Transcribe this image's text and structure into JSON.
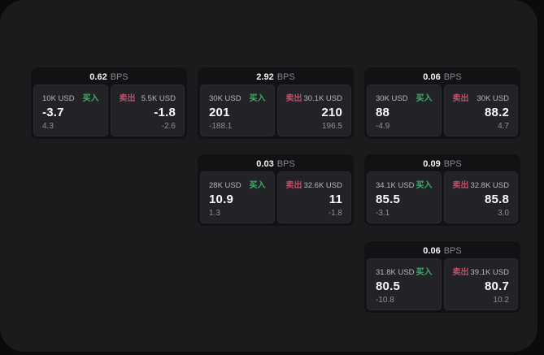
{
  "labels": {
    "bps_unit": "BPS",
    "buy": "买入",
    "sell": "卖出"
  },
  "colors": {
    "page_bg": "#0b0b0c",
    "panel_bg": "#1b1b1d",
    "card_bg": "#121214",
    "pane_bg": "#232327",
    "buy_accent": "#3fae68",
    "sell_accent": "#c0506a",
    "primary_text": "#fafafa",
    "muted_text": "#8f8f94"
  },
  "cards": [
    {
      "bps": "0.62",
      "buy": {
        "notional": "10K USD",
        "price": "-3.7",
        "delta": "4.3"
      },
      "sell": {
        "notional": "5.5K USD",
        "price": "-1.8",
        "delta": "-2.6"
      }
    },
    {
      "bps": "2.92",
      "buy": {
        "notional": "30K USD",
        "price": "201",
        "delta": "-188.1"
      },
      "sell": {
        "notional": "30.1K USD",
        "price": "210",
        "delta": "196.5"
      }
    },
    {
      "bps": "0.06",
      "buy": {
        "notional": "30K USD",
        "price": "88",
        "delta": "-4.9"
      },
      "sell": {
        "notional": "30K USD",
        "price": "88.2",
        "delta": "4.7"
      }
    },
    {
      "bps": "0.03",
      "buy": {
        "notional": "28K USD",
        "price": "10.9",
        "delta": "1.3"
      },
      "sell": {
        "notional": "32.6K USD",
        "price": "11",
        "delta": "-1.8"
      }
    },
    {
      "bps": "0.09",
      "buy": {
        "notional": "34.1K USD",
        "price": "85.5",
        "delta": "-3.1"
      },
      "sell": {
        "notional": "32.8K USD",
        "price": "85.8",
        "delta": "3.0"
      }
    },
    {
      "bps": "0.06",
      "buy": {
        "notional": "31.8K USD",
        "price": "80.5",
        "delta": "-10.8"
      },
      "sell": {
        "notional": "39.1K USD",
        "price": "80.7",
        "delta": "10.2"
      }
    }
  ]
}
